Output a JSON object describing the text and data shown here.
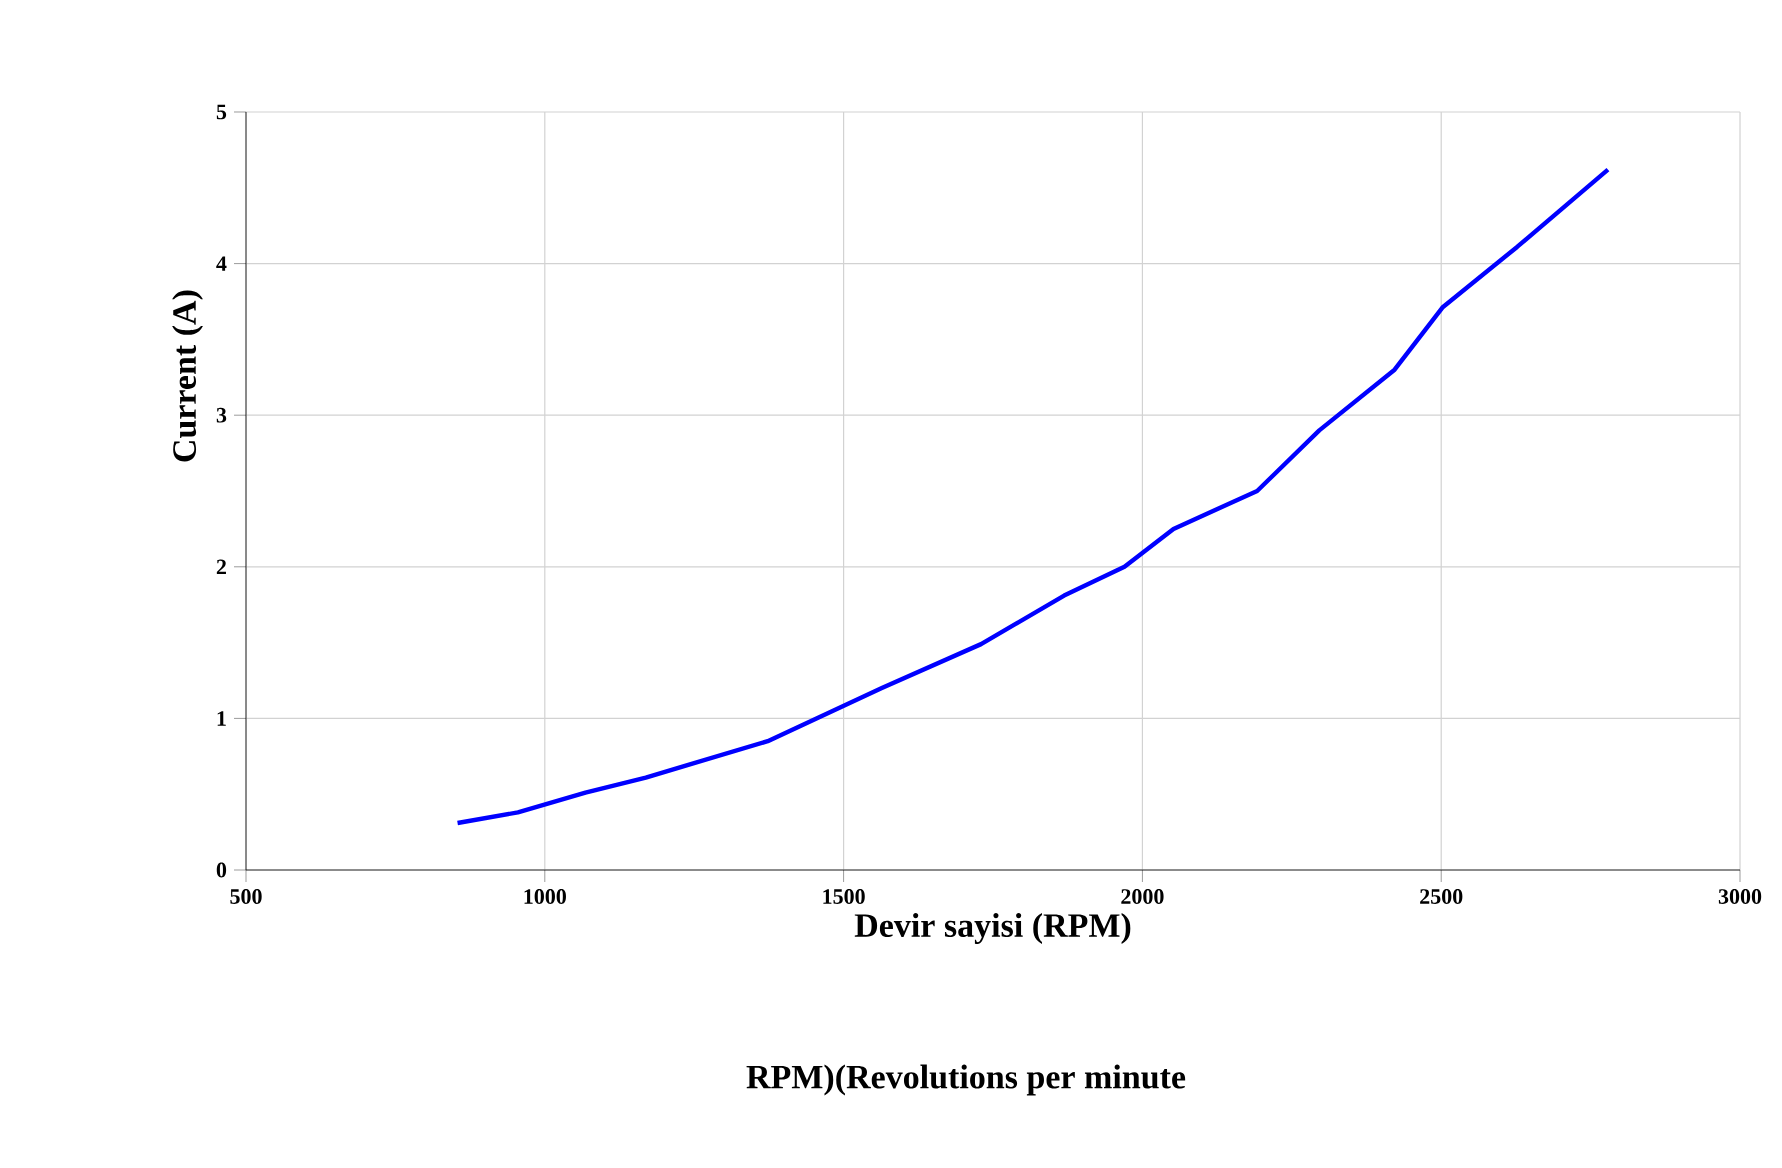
{
  "chart_data": {
    "type": "line",
    "xlabel": "Devir sayisi (RPM)",
    "ylabel": "Current (A)",
    "annotations": [
      "RPM)(Revolutions per minute"
    ],
    "x": [
      854,
      955,
      1068,
      1169,
      1373,
      1564,
      1730,
      1869,
      1970,
      2052,
      2192,
      2296,
      2422,
      2502,
      2627,
      2779
    ],
    "series": [
      {
        "color": "#0000ff",
        "values": [
          0.31,
          0.38,
          0.51,
          0.61,
          0.85,
          1.2,
          1.49,
          1.81,
          2.0,
          2.25,
          2.5,
          2.9,
          3.3,
          3.71,
          4.11,
          4.62
        ]
      }
    ],
    "xlim": [
      500,
      3000
    ],
    "ylim": [
      0,
      5
    ],
    "xticks": [
      500,
      1000,
      1500,
      2000,
      2500,
      3000
    ],
    "yticks": [
      0,
      1,
      2,
      3,
      4,
      5
    ],
    "grid": true,
    "marker": "none",
    "line_style": "solid"
  }
}
